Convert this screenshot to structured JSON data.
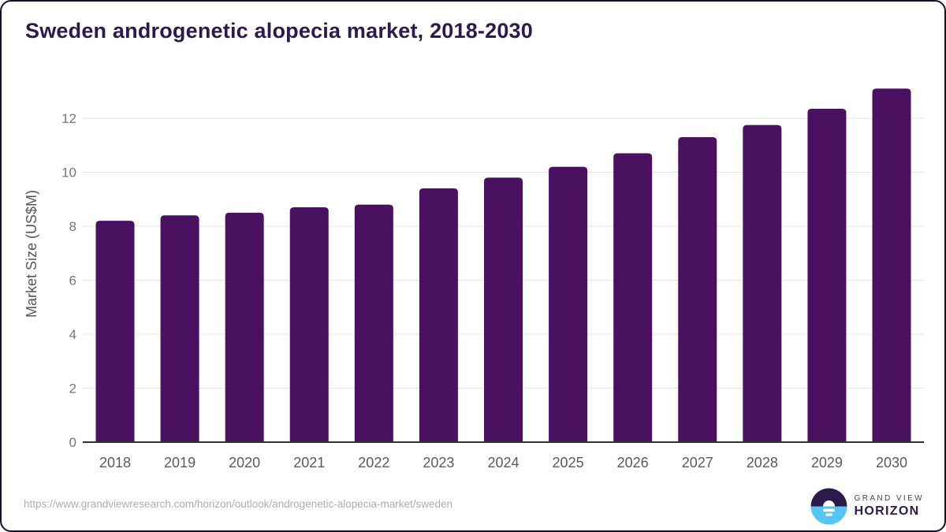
{
  "header": {
    "title": "Sweden androgenetic alopecia market, 2018-2030"
  },
  "chart_data": {
    "type": "bar",
    "title": "Sweden androgenetic alopecia market, 2018-2030",
    "categories": [
      "2018",
      "2019",
      "2020",
      "2021",
      "2022",
      "2023",
      "2024",
      "2025",
      "2026",
      "2027",
      "2028",
      "2029",
      "2030"
    ],
    "values": [
      8.2,
      8.4,
      8.5,
      8.7,
      8.8,
      9.4,
      9.8,
      10.2,
      10.7,
      11.3,
      11.75,
      12.35,
      13.1
    ],
    "xlabel": "",
    "ylabel": "Market Size (US$M)",
    "ylim": [
      0,
      13.5
    ],
    "yticks": [
      0,
      2,
      4,
      6,
      8,
      10,
      12
    ],
    "grid": true,
    "legend_position": "none",
    "bar_color": "#4a1160"
  },
  "footer": {
    "source_url": "https://www.grandviewresearch.com/horizon/outlook/androgenetic-alopecia-market/sweden",
    "logo": {
      "line1": "GRAND VIEW",
      "line2": "HORIZON"
    }
  },
  "colors": {
    "title": "#2d1a4d",
    "bar": "#4a1160",
    "gridline": "#e4e4e4",
    "axis_line": "#2f2f2f",
    "y_tick_label": "#767676",
    "x_tick_label": "#5a5a5a",
    "y_axis_title": "#555555",
    "source_url": "#aeaeae",
    "logo_dark": "#2b1b4a",
    "logo_blue": "#56c5f2",
    "border": "#18102f"
  }
}
